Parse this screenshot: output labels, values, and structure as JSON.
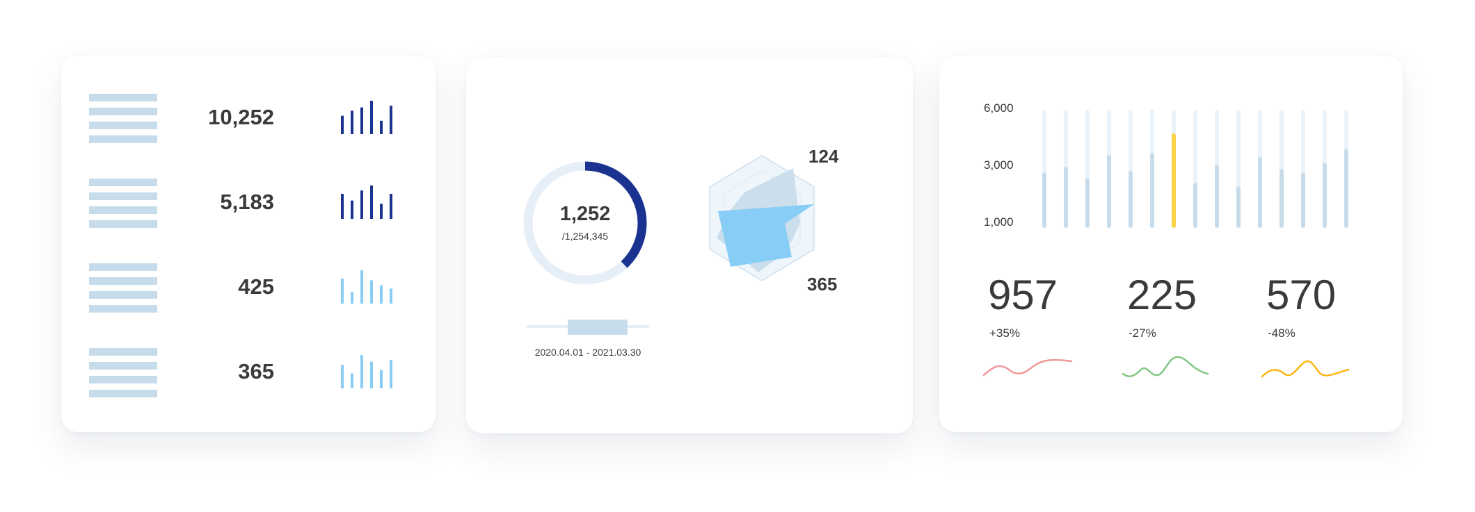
{
  "list_card": {
    "rows": [
      {
        "value": "10,252",
        "bars": [
          0.55,
          0.7,
          0.8,
          1.0,
          0.4,
          0.85
        ],
        "color": "#1a3391"
      },
      {
        "value": "5,183",
        "bars": [
          0.75,
          0.55,
          0.85,
          1.0,
          0.45,
          0.75
        ],
        "color": "#1a3391"
      },
      {
        "value": "425",
        "bars": [
          0.75,
          0.35,
          1.0,
          0.7,
          0.55,
          0.45
        ],
        "color": "#88cdf6"
      },
      {
        "value": "365",
        "bars": [
          0.7,
          0.45,
          1.0,
          0.8,
          0.55,
          0.85
        ],
        "color": "#88cdf6"
      }
    ]
  },
  "donut_card": {
    "value": "1,252",
    "total": "/1,254,345",
    "progress": 0.38,
    "date_range": "2020.04.01 - 2021.03.30",
    "radar_top_label": "124",
    "radar_bottom_label": "365",
    "colors": {
      "progress": "#1a3391",
      "track": "#e6eff7",
      "radar_fill": "#88cdf6"
    }
  },
  "stats_card": {
    "y_ticks": [
      "6,000",
      "3,000",
      "1,000"
    ],
    "columns": [
      2800,
      3100,
      2500,
      3700,
      2900,
      3800,
      4800,
      2300,
      3200,
      2100,
      3600,
      3000,
      2800,
      3300,
      4000
    ],
    "highlight_index": 6,
    "stats": [
      {
        "value": "957",
        "change": "+35%",
        "color": "#ef9a9a"
      },
      {
        "value": "225",
        "change": "-27%",
        "color": "#81c784"
      },
      {
        "value": "570",
        "change": "-48%",
        "color": "#fbb713"
      }
    ],
    "colors": {
      "column": "#c7dcea",
      "column_track": "#eaf3fa",
      "highlight": "#fcd14a"
    }
  }
}
